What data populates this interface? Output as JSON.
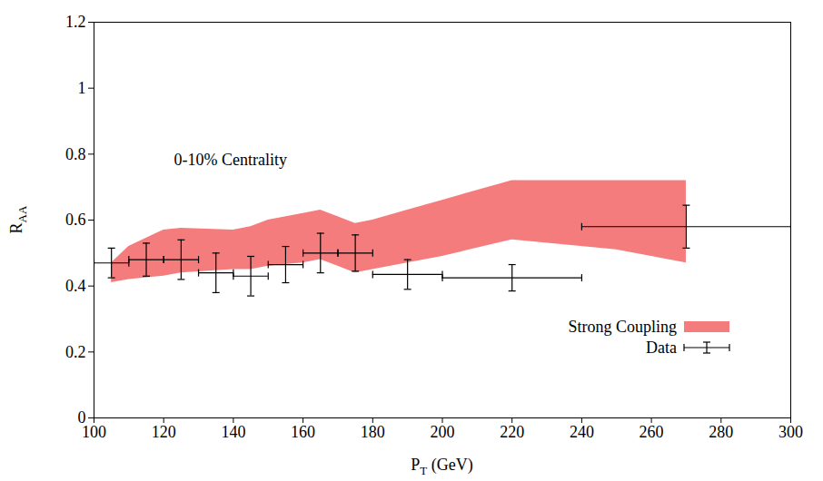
{
  "chart_data": {
    "type": "errorbar",
    "x_label": "PT (GeV)",
    "y_label": "RAA",
    "annotation": "0-10% Centrality",
    "xlim": [
      100,
      300
    ],
    "xticks": [
      100,
      120,
      140,
      160,
      180,
      200,
      220,
      240,
      260,
      280,
      300
    ],
    "ylim": [
      0,
      1.2
    ],
    "yticks": [
      0,
      0.2,
      0.4,
      0.6,
      0.8,
      1,
      1.2
    ],
    "legend": "lower right",
    "series": [
      {
        "name": "Strong Coupling",
        "type": "band",
        "color": "#f47c7c",
        "x": [
          105,
          110,
          120,
          125,
          140,
          145,
          150,
          160,
          165,
          170,
          175,
          180,
          190,
          200,
          220,
          250,
          270
        ],
        "lower": [
          0.41,
          0.42,
          0.43,
          0.44,
          0.45,
          0.45,
          0.46,
          0.47,
          0.48,
          0.46,
          0.44,
          0.45,
          0.47,
          0.49,
          0.54,
          0.51,
          0.47
        ],
        "upper": [
          0.47,
          0.52,
          0.57,
          0.575,
          0.57,
          0.58,
          0.6,
          0.62,
          0.63,
          0.61,
          0.59,
          0.6,
          0.63,
          0.66,
          0.72,
          0.72,
          0.72
        ]
      },
      {
        "name": "Data",
        "type": "errorbar",
        "color": "#000000",
        "x": [
          105,
          115,
          125,
          135,
          145,
          155,
          165,
          175,
          190,
          220,
          270
        ],
        "x_low": [
          100,
          110,
          120,
          130,
          140,
          150,
          160,
          170,
          180,
          200,
          240
        ],
        "x_high": [
          110,
          120,
          130,
          140,
          150,
          160,
          170,
          180,
          200,
          240,
          300
        ],
        "values": [
          0.47,
          0.48,
          0.48,
          0.44,
          0.43,
          0.465,
          0.5,
          0.5,
          0.435,
          0.425,
          0.58
        ],
        "y_err": [
          0.045,
          0.05,
          0.06,
          0.06,
          0.06,
          0.055,
          0.06,
          0.055,
          0.045,
          0.04,
          0.065
        ]
      }
    ]
  }
}
